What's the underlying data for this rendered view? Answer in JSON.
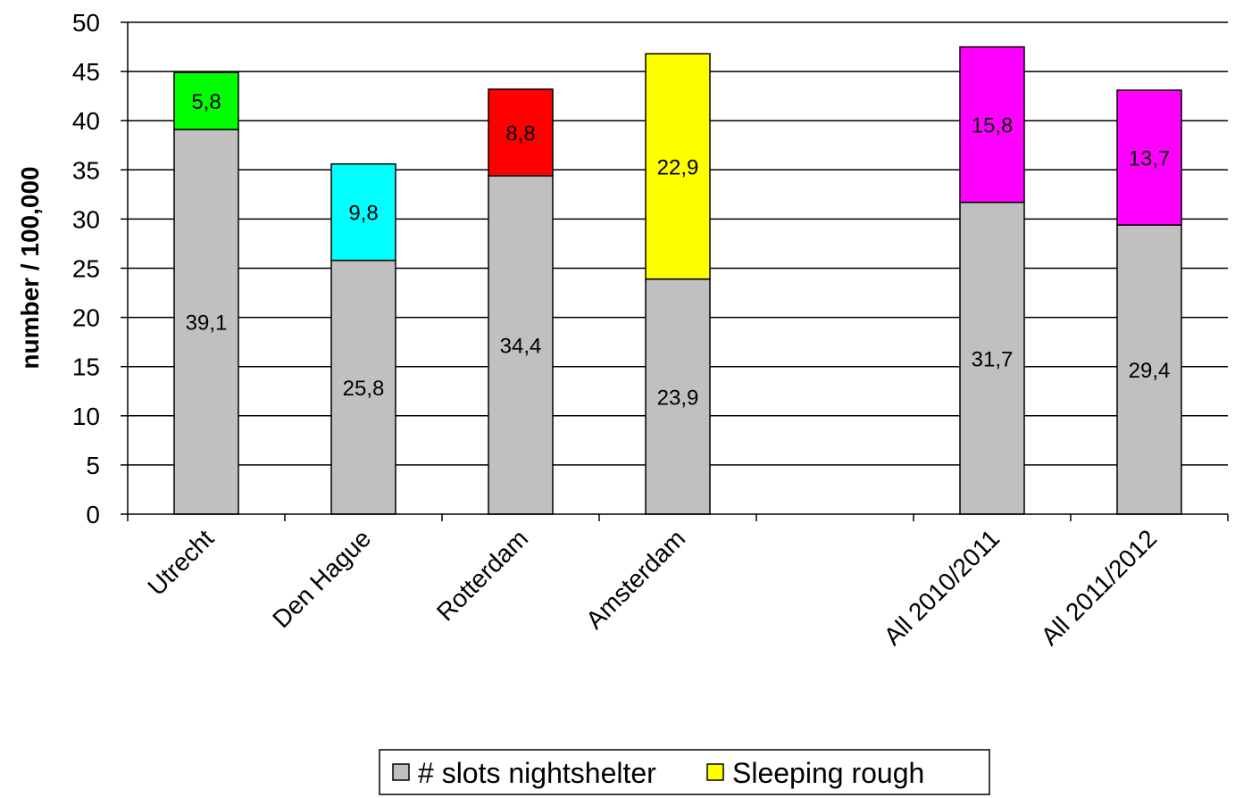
{
  "chart_data": {
    "type": "bar",
    "stacked": true,
    "categories": [
      "Utrecht",
      "Den Hague",
      "Rotterdam",
      "Amsterdam",
      "",
      "All 2010/2011",
      "All 2011/2012"
    ],
    "series": [
      {
        "name": "# slots nightshelter",
        "values": [
          39.1,
          25.8,
          34.4,
          23.9,
          null,
          31.7,
          29.4
        ],
        "labels": [
          "39,1",
          "25,8",
          "34,4",
          "23,9",
          "",
          "31,7",
          "29,4"
        ],
        "color": "#c0c0c0"
      },
      {
        "name": "Sleeping rough",
        "values": [
          5.8,
          9.8,
          8.8,
          22.9,
          null,
          15.8,
          13.7
        ],
        "labels": [
          "5,8",
          "9,8",
          "8,8",
          "22,9",
          "",
          "15,8",
          "13,7"
        ],
        "colors": [
          "#00ff00",
          "#00ffff",
          "#ff0000",
          "#ffff00",
          "",
          "#ff00ff",
          "#ff00ff"
        ],
        "color": "#ffff00"
      }
    ],
    "ylabel": "number / 100,000",
    "xlabel": "",
    "ylim": [
      0,
      50
    ],
    "yticks": [
      "0",
      "5",
      "10",
      "15",
      "20",
      "25",
      "30",
      "35",
      "40",
      "45",
      "50"
    ],
    "grid": true,
    "legend_position": "bottom"
  }
}
